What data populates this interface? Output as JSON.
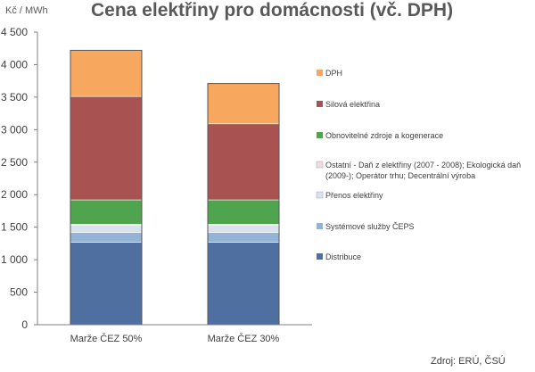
{
  "chart_data": {
    "type": "bar",
    "stacked": true,
    "title": "Cena elektřiny pro domácnosti (vč. DPH)",
    "unit_label": "Kč / MWh",
    "ylim": [
      0,
      4500
    ],
    "yticks": [
      0,
      500,
      1000,
      1500,
      2000,
      2500,
      3000,
      3500,
      4000,
      4500
    ],
    "ytick_labels": [
      "0",
      "500",
      "1 000",
      "1 500",
      "2 000",
      "2 500",
      "3 000",
      "3 500",
      "4 000",
      "4 500"
    ],
    "grid": false,
    "legend_position": "right",
    "categories": [
      "Marže ČEZ 50%",
      "Marže ČEZ 30%"
    ],
    "series": [
      {
        "name": "Distribuce",
        "color": "#4F6FA0",
        "values": [
          1270,
          1270
        ]
      },
      {
        "name": "Systémové služby ČEPS",
        "color": "#95B3D7",
        "values": [
          150,
          150
        ]
      },
      {
        "name": "Přenos elektřiny",
        "color": "#D9E3F0",
        "values": [
          110,
          110
        ]
      },
      {
        "name": "Ostatní - Daň z elektřiny (2007 - 2008); Ekologická daň (2009-); Operátor trhu; Decentrální výroba",
        "legend_lines": [
          "Ostatní - Daň z elektřiny (2007 - 2008); Ekologická daň",
          "(2009-); Operátor trhu; Decentrální výroba"
        ],
        "color": "#F2DCDB",
        "values": [
          15,
          15
        ]
      },
      {
        "name": "Obnovitelné zdroje a kogenerace",
        "color": "#4EA54E",
        "values": [
          375,
          375
        ]
      },
      {
        "name": "Silová elektřina",
        "color": "#A85252",
        "values": [
          1590,
          1170
        ]
      },
      {
        "name": "DPH",
        "color": "#F8A75E",
        "values": [
          710,
          620
        ]
      }
    ],
    "source": "Zdroj: ERÚ, ČSÚ"
  }
}
